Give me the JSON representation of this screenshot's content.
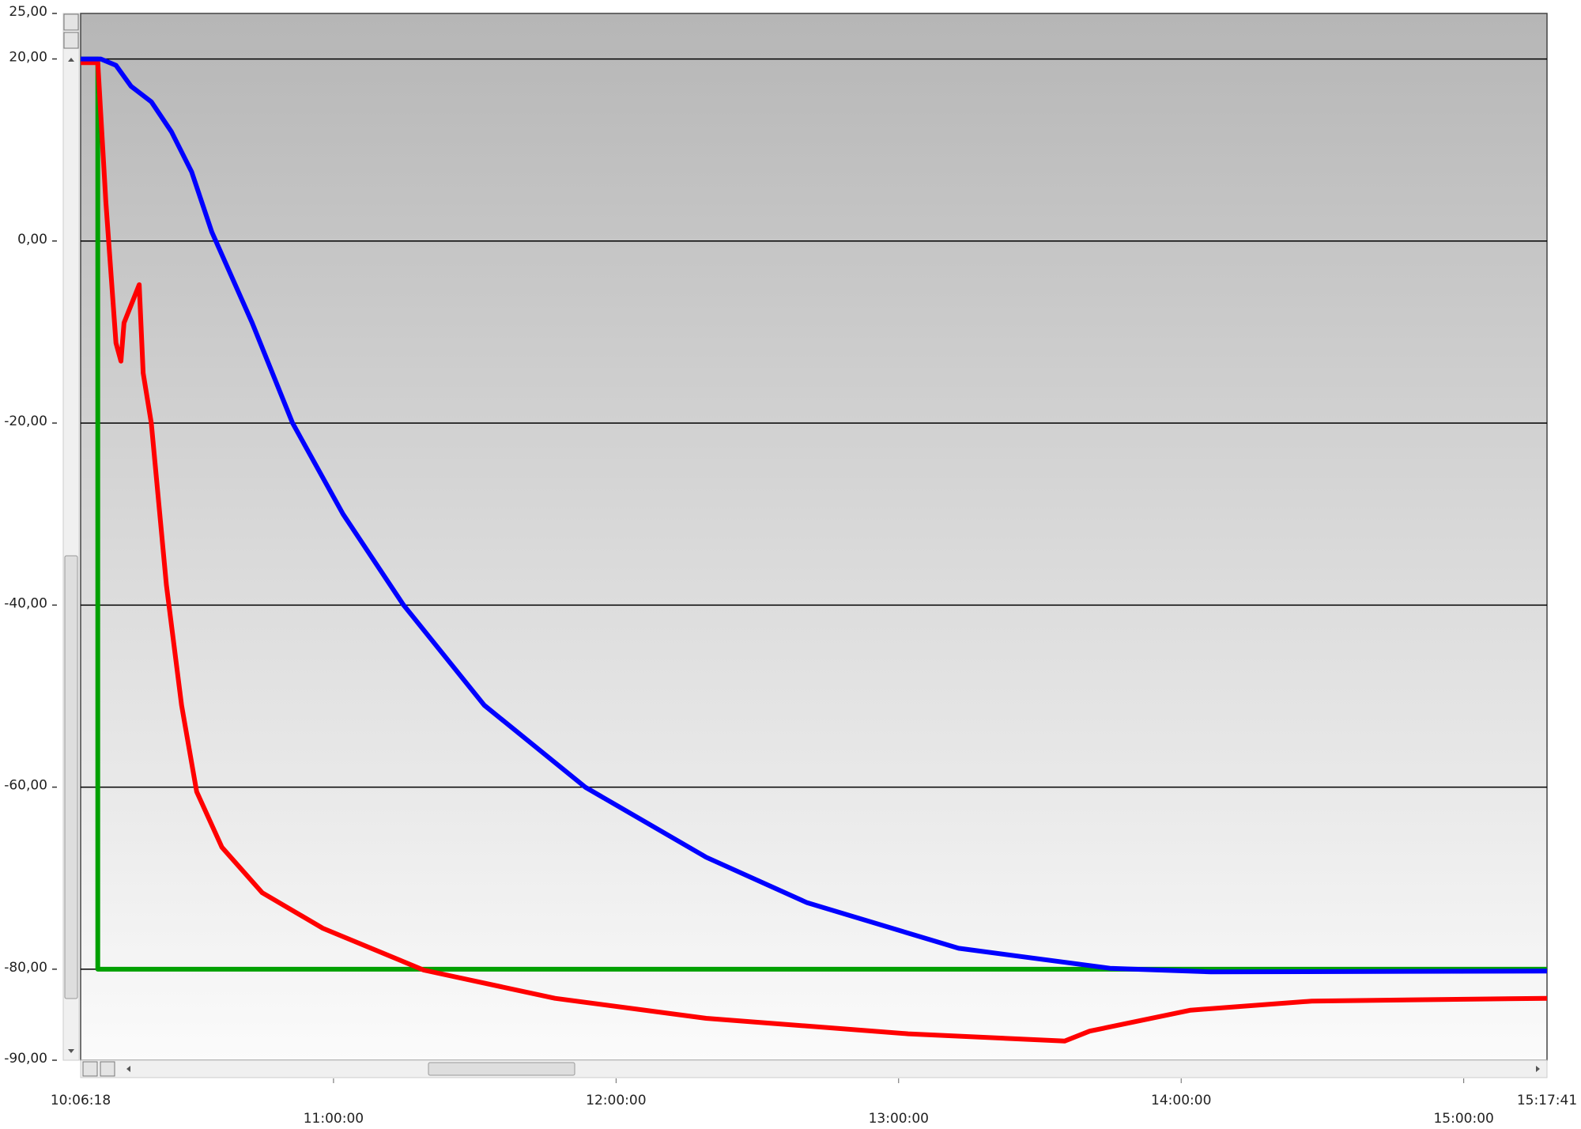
{
  "chart_data": {
    "type": "line",
    "xlim": [
      "10:06:18",
      "15:17:41"
    ],
    "xticks": [
      "11:00:00",
      "12:00:00",
      "13:00:00",
      "14:00:00",
      "15:00:00"
    ],
    "ylim": [
      -90,
      25
    ],
    "yticks": [
      {
        "value": 25,
        "label": "25,00"
      },
      {
        "value": 20,
        "label": "20,00"
      },
      {
        "value": 0,
        "label": "0,00"
      },
      {
        "value": -20,
        "label": "-20,00"
      },
      {
        "value": -40,
        "label": "-40,00"
      },
      {
        "value": -60,
        "label": "-60,00"
      },
      {
        "value": -80,
        "label": "-80,00"
      },
      {
        "value": -90,
        "label": "-90,00"
      }
    ],
    "grid": true,
    "series": [
      {
        "color": "#00a000",
        "x": [
          "10:06:18",
          "10:09:57",
          "10:09:57",
          "15:17:41"
        ],
        "values": [
          20,
          20,
          -80,
          -80
        ]
      },
      {
        "color": "#ff0000",
        "x": [
          "10:06:18",
          "10:09:57",
          "10:11:39",
          "10:13:48",
          "10:14:52",
          "10:15:31",
          "10:18:44",
          "10:19:35",
          "10:21:18",
          "10:24:31",
          "10:27:44",
          "10:30:57",
          "10:36:18",
          "10:44:52",
          "10:57:44",
          "11:19:09",
          "11:47:01",
          "12:19:09",
          "13:02:01",
          "13:35:14",
          "13:40:35",
          "14:02:01",
          "14:27:44",
          "15:17:41"
        ],
        "values": [
          19.6,
          19.6,
          4.3,
          -11.2,
          -13.2,
          -9,
          -4.8,
          -14.5,
          -20,
          -37.8,
          -51,
          -60.5,
          -66.6,
          -71.6,
          -75.5,
          -80.1,
          -83.2,
          -85.4,
          -87.1,
          -87.9,
          -86.8,
          -84.5,
          -83.5,
          -83.2
        ]
      },
      {
        "color": "#0000ff",
        "x": [
          "10:06:18",
          "10:10:35",
          "10:13:48",
          "10:17:01",
          "10:21:18",
          "10:25:35",
          "10:29:52",
          "10:34:09",
          "10:42:44",
          "10:51:18",
          "11:02:01",
          "11:14:52",
          "11:32:01",
          "11:53:27",
          "12:19:09",
          "12:40:35",
          "13:12:44",
          "13:44:52",
          "14:06:18",
          "15:17:41"
        ],
        "values": [
          20,
          20,
          19.3,
          17,
          15.3,
          12,
          7.6,
          1,
          -9,
          -20,
          -30,
          -40,
          -51,
          -60,
          -67.7,
          -72.7,
          -77.7,
          -79.9,
          -80.3,
          -80.2
        ]
      }
    ]
  }
}
